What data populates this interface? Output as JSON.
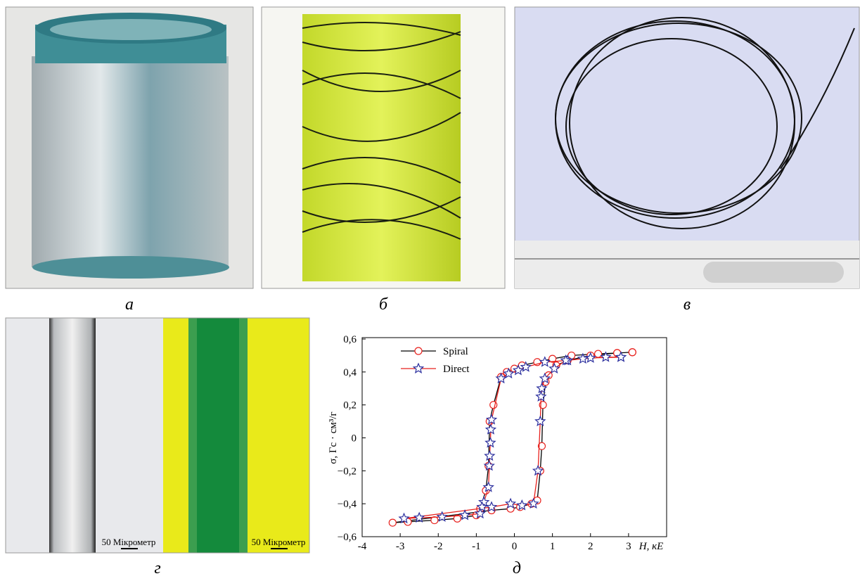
{
  "panels": {
    "labels": [
      "а",
      "б",
      "в",
      "г",
      "д"
    ],
    "scale_labels": [
      "50 Мікрометр",
      "50 Мікрометр"
    ]
  },
  "chart_data": {
    "type": "line",
    "x_label": "H, кЕ",
    "y_label": "σ, Гс · см³/г",
    "xlim": [
      -4,
      4
    ],
    "xticks": [
      -4,
      -3,
      -2,
      -1,
      0,
      1,
      2,
      3
    ],
    "ylim": [
      -0.6,
      0.6
    ],
    "yticks": [
      {
        "value": -0.6,
        "label": "−0,6"
      },
      {
        "value": -0.4,
        "label": "−0,4"
      },
      {
        "value": -0.2,
        "label": "−0,2"
      },
      0,
      {
        "value": 0.2,
        "label": "0,2"
      },
      {
        "value": 0.4,
        "label": "0,4"
      },
      {
        "value": 0.6,
        "label": "0,6"
      }
    ],
    "legend": "top-left",
    "series": [
      {
        "name": "Spiral",
        "color": "#000000",
        "marker": "circle",
        "marker_color": "#e8211d",
        "x": [
          3.1,
          2.7,
          2.2,
          1.5,
          1.0,
          0.6,
          0.2,
          0,
          -0.2,
          -0.35,
          -0.55,
          -0.65,
          -0.68,
          -0.75,
          -0.9,
          -1.0,
          -1.5,
          -2.1,
          -2.8,
          -3.2,
          -0.6,
          -0.1,
          0.15,
          0.45,
          0.6,
          0.68,
          0.72,
          0.75,
          0.82,
          0.9,
          1.1,
          1.4,
          2.0,
          2.7,
          3.1
        ],
        "values": [
          0.52,
          0.515,
          0.51,
          0.5,
          0.48,
          0.46,
          0.44,
          0.42,
          0.4,
          0.37,
          0.2,
          0.1,
          -0.17,
          -0.32,
          -0.43,
          -0.47,
          -0.49,
          -0.5,
          -0.51,
          -0.515,
          -0.44,
          -0.43,
          -0.42,
          -0.4,
          -0.38,
          -0.2,
          -0.05,
          0.2,
          0.34,
          0.38,
          0.44,
          0.47,
          0.5,
          0.515,
          0.52
        ]
      },
      {
        "name": "Direct",
        "color": "#e8211d",
        "marker": "star",
        "marker_color": "#2b2f9e",
        "x": [
          2.8,
          2.0,
          1.4,
          0.8,
          0.3,
          0.1,
          -0.15,
          -0.35,
          -0.6,
          -0.62,
          -0.63,
          -0.65,
          -0.66,
          -0.68,
          -0.8,
          -0.85,
          -0.9,
          -1.3,
          -1.9,
          -2.5,
          -2.9,
          -0.6,
          -0.1,
          0.2,
          0.5,
          0.62,
          0.68,
          0.7,
          0.72,
          0.8,
          1.05,
          1.35,
          1.8,
          2.4,
          2.8
        ],
        "values": [
          0.49,
          0.485,
          0.47,
          0.46,
          0.43,
          0.41,
          0.39,
          0.36,
          0.11,
          0.05,
          -0.03,
          -0.11,
          -0.17,
          -0.3,
          -0.39,
          -0.42,
          -0.46,
          -0.47,
          -0.48,
          -0.485,
          -0.49,
          -0.42,
          -0.4,
          -0.41,
          -0.4,
          -0.2,
          0.1,
          0.25,
          0.3,
          0.36,
          0.42,
          0.47,
          0.48,
          0.49,
          0.49
        ]
      }
    ]
  }
}
